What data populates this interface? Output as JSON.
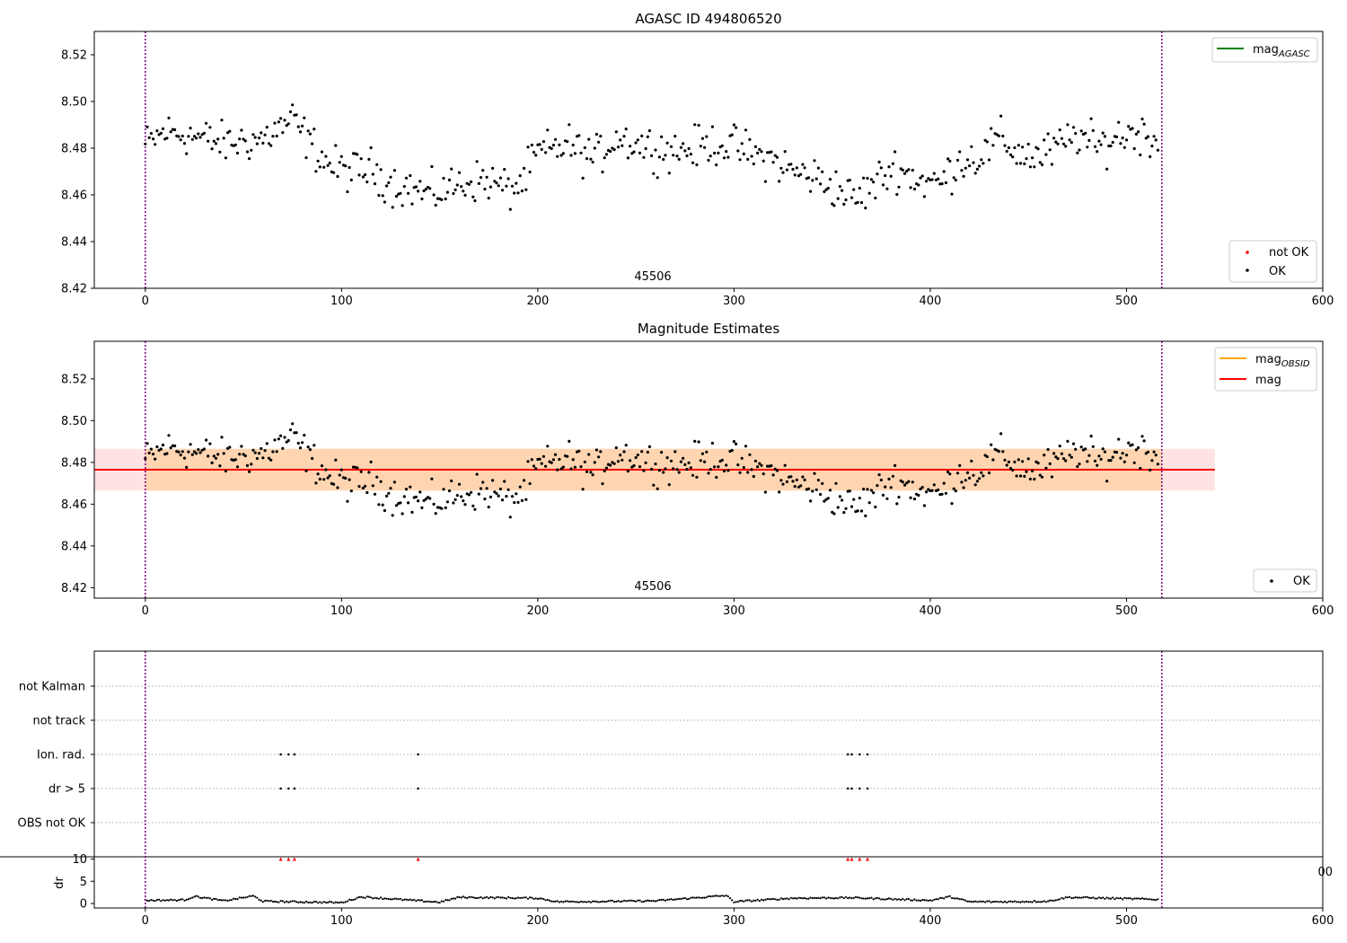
{
  "chart_data": [
    {
      "type": "scatter",
      "title": "AGASC ID 494806520",
      "xlim": [
        -26,
        600
      ],
      "ylim": [
        8.42,
        8.53
      ],
      "xticks": [
        0,
        100,
        200,
        300,
        400,
        500,
        600
      ],
      "yticks": [
        8.42,
        8.44,
        8.46,
        8.48,
        8.5,
        8.52
      ],
      "obsid_label": "45506",
      "obs_bounds": [
        0,
        518
      ],
      "legend_lines": [
        {
          "name": "mag",
          "sub": "AGASC",
          "color": "#008000"
        }
      ],
      "legend_points": [
        {
          "name": "not OK",
          "color": "#ff0000"
        },
        {
          "name": "OK",
          "color": "#000000"
        }
      ],
      "series": [
        {
          "name": "OK",
          "color": "#000000",
          "anchors_x": [
            0,
            10,
            20,
            30,
            40,
            50,
            60,
            75,
            85,
            95,
            105,
            115,
            125,
            135,
            145,
            155,
            165,
            175,
            185,
            192,
            200,
            207,
            215,
            222,
            230,
            240,
            250,
            260,
            270,
            280,
            290,
            300,
            310,
            320,
            330,
            340,
            350,
            362,
            372,
            382,
            395,
            405,
            415,
            425,
            435,
            445,
            455,
            465,
            475,
            485,
            495,
            505,
            517
          ],
          "anchors_y": [
            8.481,
            8.487,
            8.486,
            8.484,
            8.482,
            8.483,
            8.484,
            8.492,
            8.481,
            8.472,
            8.47,
            8.471,
            8.465,
            8.463,
            8.46,
            8.463,
            8.466,
            8.466,
            8.462,
            8.465,
            8.478,
            8.479,
            8.482,
            8.478,
            8.476,
            8.485,
            8.482,
            8.48,
            8.479,
            8.48,
            8.482,
            8.481,
            8.477,
            8.475,
            8.47,
            8.468,
            8.464,
            8.458,
            8.465,
            8.472,
            8.466,
            8.465,
            8.475,
            8.476,
            8.484,
            8.478,
            8.476,
            8.48,
            8.486,
            8.48,
            8.485,
            8.487,
            8.484
          ],
          "n_points": 517,
          "noise": 0.0055
        }
      ]
    },
    {
      "type": "scatter",
      "title": "Magnitude Estimates",
      "xlim": [
        -26,
        600
      ],
      "ylim": [
        8.415,
        8.538
      ],
      "xticks": [
        0,
        100,
        200,
        300,
        400,
        500,
        600
      ],
      "yticks": [
        8.42,
        8.44,
        8.46,
        8.48,
        8.5,
        8.52
      ],
      "obsid_label": "45506",
      "obs_bounds": [
        0,
        518
      ],
      "mag": 8.4765,
      "mag_band": [
        8.4665,
        8.4865
      ],
      "obs_band_x": [
        0,
        518
      ],
      "mag_band_x": [
        -26,
        545
      ],
      "legend_lines": [
        {
          "name": "mag",
          "sub": "OBSID",
          "color": "#ffa500"
        },
        {
          "name": "mag",
          "sub": "",
          "color": "#ff0000"
        }
      ],
      "legend_points": [
        {
          "name": "OK",
          "color": "#000000"
        }
      ],
      "series": [
        {
          "name": "OK",
          "color": "#000000",
          "same_as_panel": 0
        }
      ]
    },
    {
      "type": "scatter",
      "title": "",
      "xlim": [
        -26,
        600
      ],
      "xticks": [
        0,
        100,
        200,
        300,
        400,
        500,
        600
      ],
      "flag_rows": [
        "not Kalman",
        "not track",
        "Ion. rad.",
        "dr > 5",
        "OBS not OK"
      ],
      "flag_points": {
        "Ion. rad.": [
          69,
          73,
          76,
          139,
          358,
          360,
          364,
          368
        ],
        "dr > 5": [
          69,
          73,
          76,
          139,
          358,
          360,
          364,
          368
        ]
      },
      "obs_bounds": [
        0,
        518
      ],
      "dr": {
        "ylabel": "dr",
        "ylim": [
          -1,
          10.5
        ],
        "yticks": [
          0,
          5,
          10
        ],
        "n_points": 517,
        "anchors_x": [
          0,
          20,
          25,
          40,
          55,
          60,
          100,
          110,
          150,
          160,
          200,
          210,
          240,
          260,
          290,
          296,
          300,
          330,
          360,
          400,
          410,
          420,
          440,
          460,
          470,
          518
        ],
        "anchors_y": [
          0.7,
          0.8,
          1.6,
          0.6,
          1.7,
          0.5,
          0.2,
          1.5,
          0.3,
          1.4,
          1.2,
          0.4,
          0.5,
          0.6,
          1.6,
          1.8,
          0.4,
          1.2,
          1.3,
          0.7,
          1.5,
          0.4,
          0.4,
          0.5,
          1.4,
          0.9
        ],
        "clipped_x": [
          69,
          73,
          76,
          139,
          358,
          360,
          364,
          368
        ],
        "clipped_color": "#ff0000"
      },
      "stray_tick_label": "00"
    }
  ]
}
